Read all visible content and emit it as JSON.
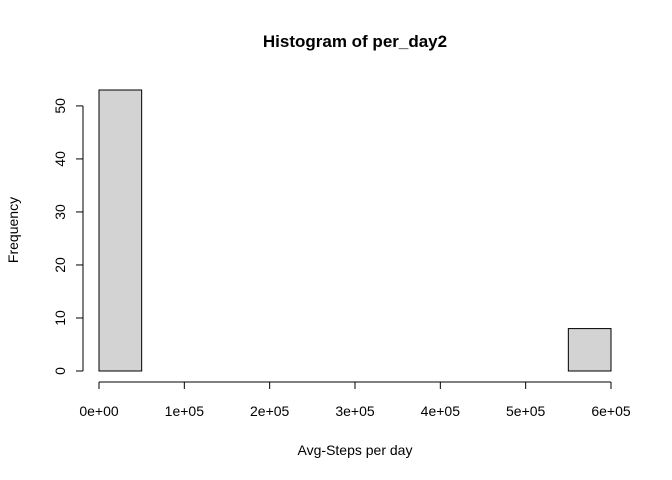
{
  "chart_data": {
    "type": "bar",
    "title": "Histogram of per_day2",
    "xlabel": "Avg-Steps per day",
    "ylabel": "Frequency",
    "bin_edges": [
      0,
      50000,
      100000,
      150000,
      200000,
      250000,
      300000,
      350000,
      400000,
      450000,
      500000,
      550000,
      600000
    ],
    "values": [
      53,
      0,
      0,
      0,
      0,
      0,
      0,
      0,
      0,
      0,
      0,
      8
    ],
    "xlim": [
      0,
      600000
    ],
    "ylim": [
      0,
      53
    ],
    "x_ticks": [
      0,
      100000,
      200000,
      300000,
      400000,
      500000,
      600000
    ],
    "x_tick_labels": [
      "0e+00",
      "1e+05",
      "2e+05",
      "3e+05",
      "4e+05",
      "5e+05",
      "6e+05"
    ],
    "y_ticks": [
      0,
      10,
      20,
      30,
      40,
      50
    ],
    "y_tick_labels": [
      "0",
      "10",
      "20",
      "30",
      "40",
      "50"
    ],
    "bar_color": "#d3d3d3",
    "grid": false
  }
}
